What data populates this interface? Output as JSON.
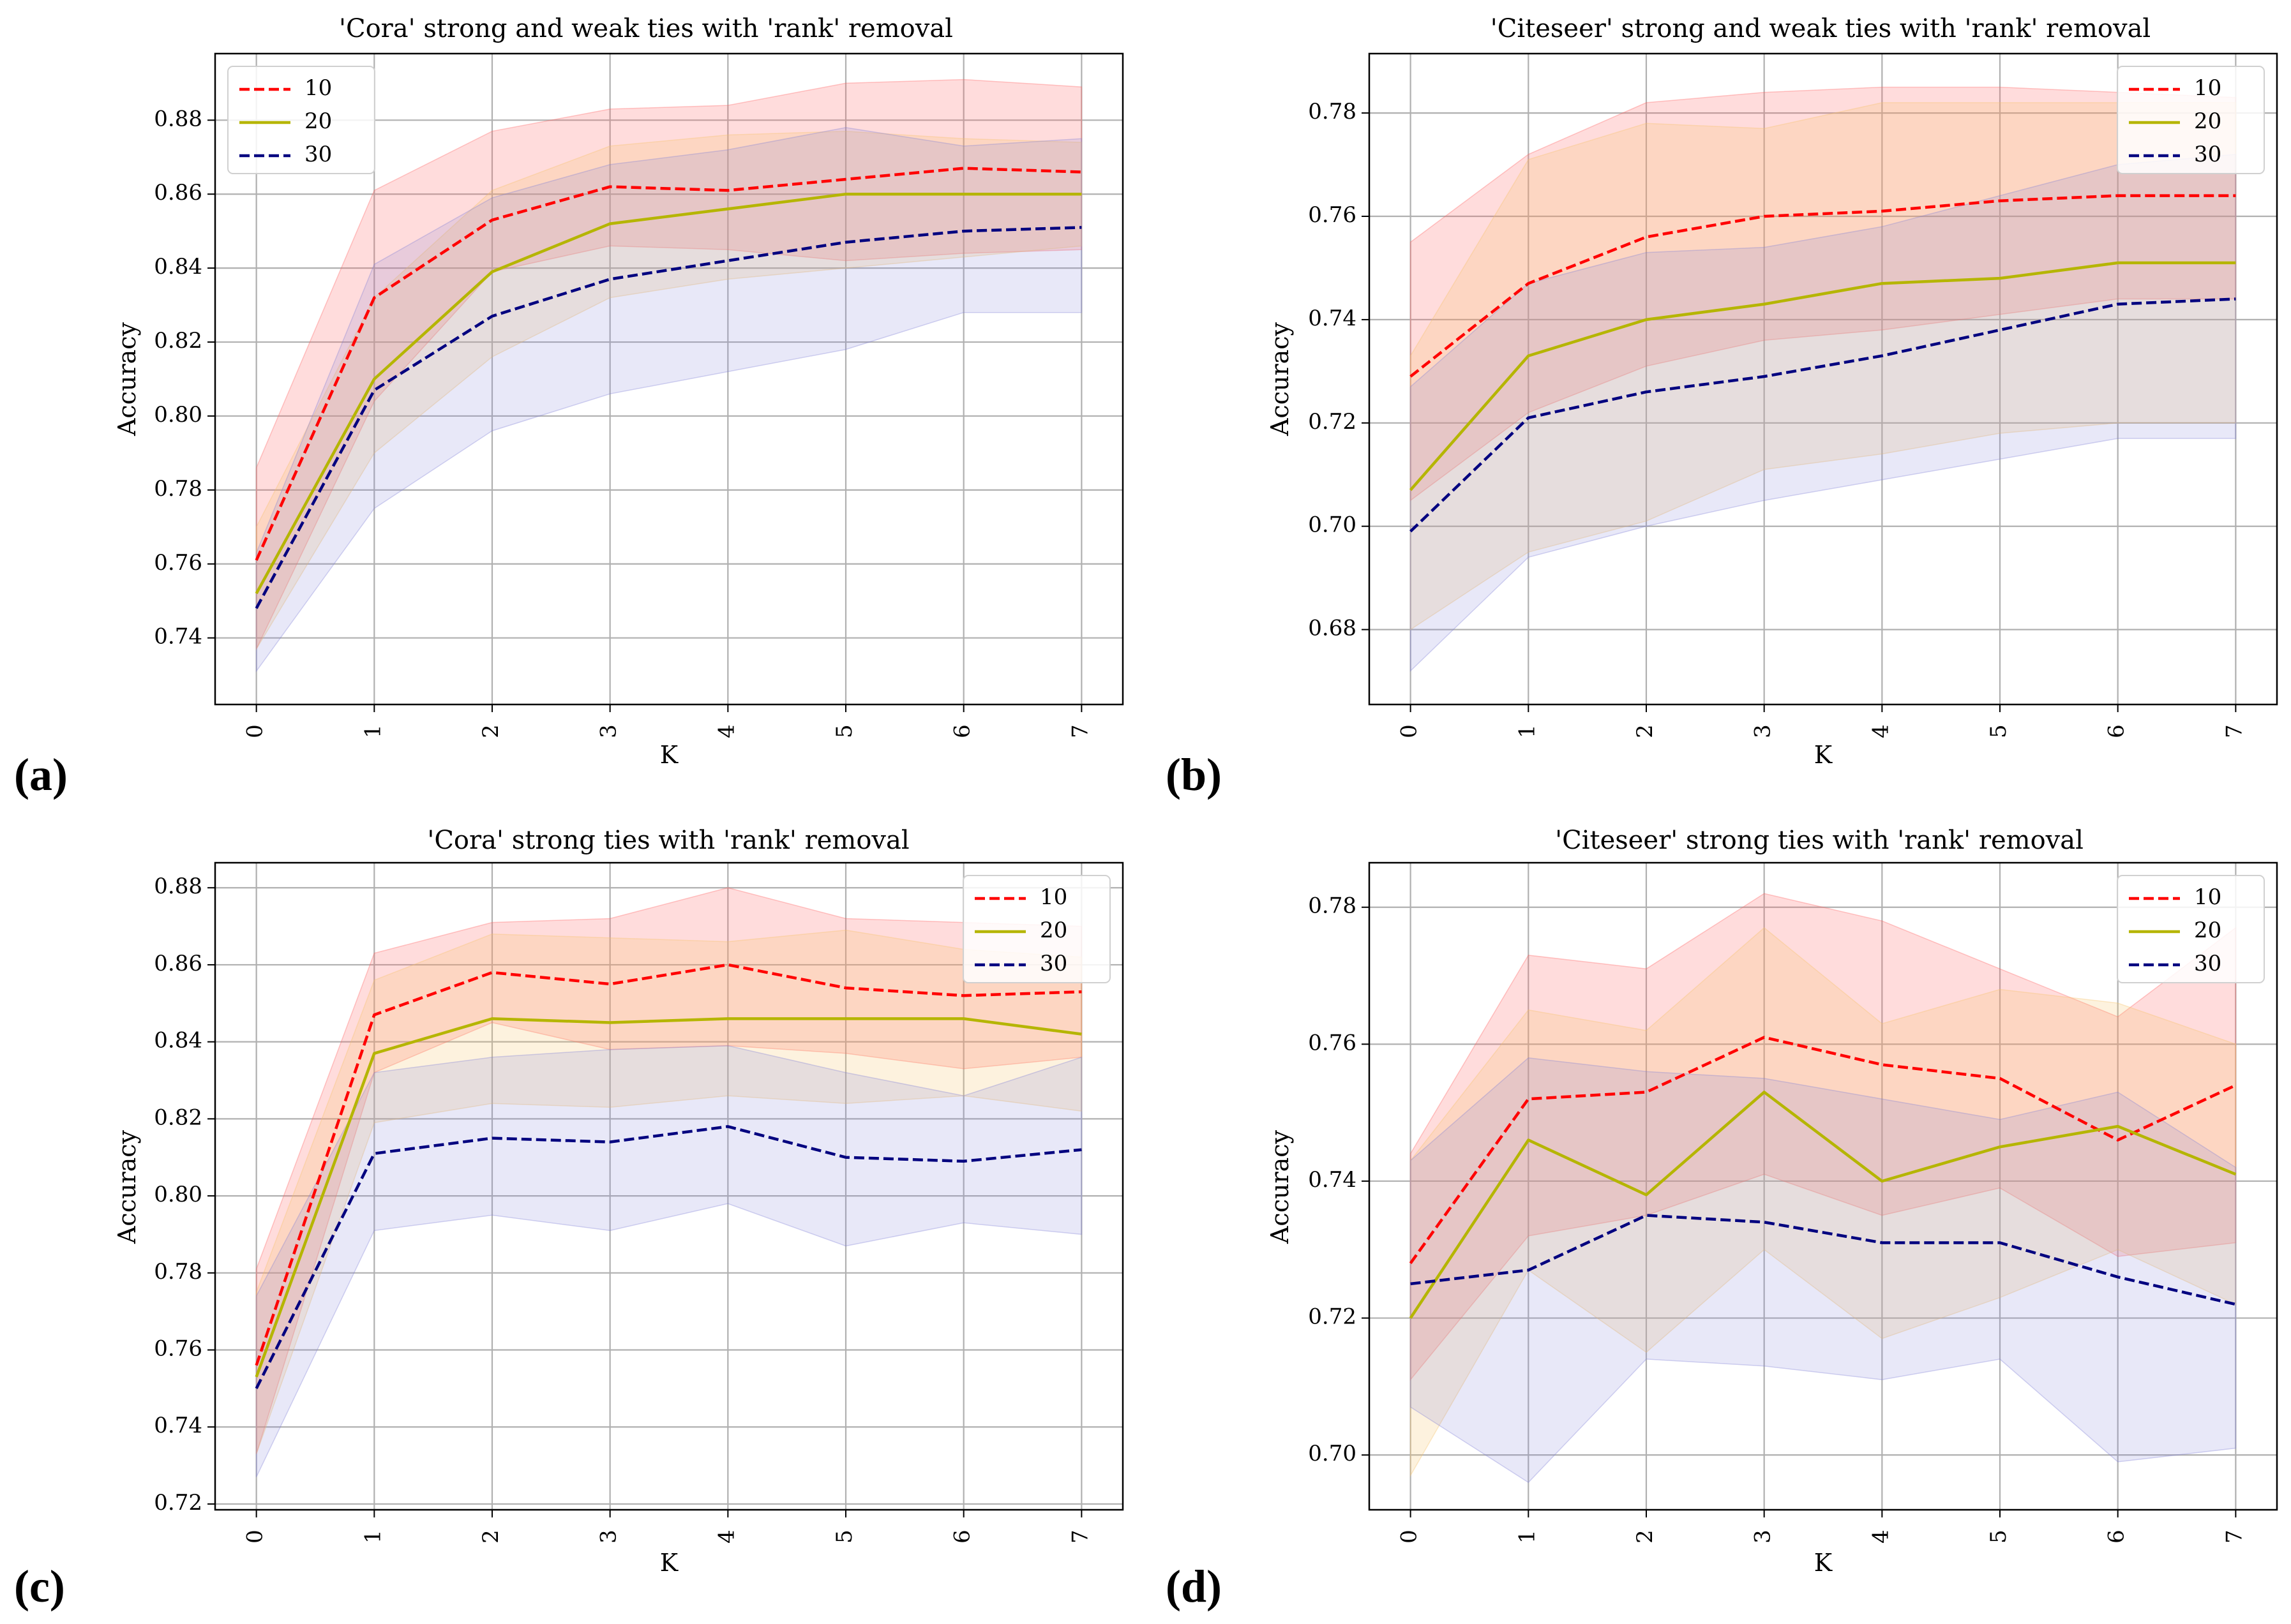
{
  "colors": {
    "s10": "#ff0000",
    "s20": "#b5b500",
    "s30": "#00007f",
    "band10": "#ff6060",
    "band20": "#f5c26b",
    "band30": "#8080d8"
  },
  "chart_data": [
    {
      "panel_label": "(a)",
      "type": "line",
      "title": "'Cora' strong and weak ties with 'rank' removal",
      "xlabel": "K",
      "ylabel": "Accuracy",
      "x": [
        0,
        1,
        2,
        3,
        4,
        5,
        6,
        7
      ],
      "xlim": [
        -0.35,
        7.35
      ],
      "ylim": [
        0.722,
        0.898
      ],
      "yticks": [
        0.74,
        0.76,
        0.78,
        0.8,
        0.82,
        0.84,
        0.86,
        0.88
      ],
      "ytick_labels": [
        "0.74",
        "0.76",
        "0.78",
        "0.80",
        "0.82",
        "0.84",
        "0.86",
        "0.88"
      ],
      "legend_position": "top-left",
      "series": [
        {
          "name": "10",
          "style": "dashed",
          "values": [
            0.761,
            0.832,
            0.853,
            0.862,
            0.861,
            0.864,
            0.867,
            0.866
          ],
          "lower": [
            0.737,
            0.804,
            0.839,
            0.846,
            0.845,
            0.842,
            0.844,
            0.845
          ],
          "upper": [
            0.786,
            0.861,
            0.877,
            0.883,
            0.884,
            0.89,
            0.891,
            0.889
          ]
        },
        {
          "name": "20",
          "style": "solid",
          "values": [
            0.752,
            0.81,
            0.839,
            0.852,
            0.856,
            0.86,
            0.86,
            0.86
          ],
          "lower": [
            0.737,
            0.79,
            0.816,
            0.832,
            0.837,
            0.84,
            0.843,
            0.846
          ],
          "upper": [
            0.77,
            0.832,
            0.861,
            0.873,
            0.876,
            0.877,
            0.875,
            0.874
          ]
        },
        {
          "name": "30",
          "style": "dashed",
          "values": [
            0.748,
            0.807,
            0.827,
            0.837,
            0.842,
            0.847,
            0.85,
            0.851
          ],
          "lower": [
            0.731,
            0.775,
            0.796,
            0.806,
            0.812,
            0.818,
            0.828,
            0.828
          ],
          "upper": [
            0.763,
            0.841,
            0.859,
            0.868,
            0.872,
            0.878,
            0.873,
            0.875
          ]
        }
      ]
    },
    {
      "panel_label": "(b)",
      "type": "line",
      "title": "'Citeseer' strong and weak ties with 'rank' removal",
      "xlabel": "K",
      "ylabel": "Accuracy",
      "x": [
        0,
        1,
        2,
        3,
        4,
        5,
        6,
        7
      ],
      "xlim": [
        -0.35,
        7.35
      ],
      "ylim": [
        0.6655,
        0.7915
      ],
      "yticks": [
        0.68,
        0.7,
        0.72,
        0.74,
        0.76,
        0.78
      ],
      "ytick_labels": [
        "0.68",
        "0.70",
        "0.72",
        "0.74",
        "0.76",
        "0.78"
      ],
      "legend_position": "top-right",
      "series": [
        {
          "name": "10",
          "style": "dashed",
          "values": [
            0.729,
            0.747,
            0.756,
            0.76,
            0.761,
            0.763,
            0.764,
            0.764
          ],
          "lower": [
            0.705,
            0.722,
            0.731,
            0.736,
            0.738,
            0.741,
            0.744,
            0.744
          ],
          "upper": [
            0.755,
            0.772,
            0.782,
            0.784,
            0.785,
            0.785,
            0.784,
            0.783
          ]
        },
        {
          "name": "20",
          "style": "solid",
          "values": [
            0.707,
            0.733,
            0.74,
            0.743,
            0.747,
            0.748,
            0.751,
            0.751
          ],
          "lower": [
            0.68,
            0.695,
            0.701,
            0.711,
            0.714,
            0.718,
            0.72,
            0.72
          ],
          "upper": [
            0.733,
            0.771,
            0.778,
            0.777,
            0.782,
            0.782,
            0.782,
            0.782
          ]
        },
        {
          "name": "30",
          "style": "dashed",
          "values": [
            0.699,
            0.721,
            0.726,
            0.729,
            0.733,
            0.738,
            0.743,
            0.744
          ],
          "lower": [
            0.672,
            0.694,
            0.7,
            0.705,
            0.709,
            0.713,
            0.717,
            0.717
          ],
          "upper": [
            0.727,
            0.747,
            0.753,
            0.754,
            0.758,
            0.764,
            0.77,
            0.772
          ]
        }
      ]
    },
    {
      "panel_label": "(c)",
      "type": "line",
      "title": "'Cora' strong ties with 'rank' removal",
      "xlabel": "K",
      "ylabel": "Accuracy",
      "x": [
        0,
        1,
        2,
        3,
        4,
        5,
        6,
        7
      ],
      "xlim": [
        -0.35,
        7.35
      ],
      "ylim": [
        0.7185,
        0.8865
      ],
      "yticks": [
        0.72,
        0.74,
        0.76,
        0.78,
        0.8,
        0.82,
        0.84,
        0.86,
        0.88
      ],
      "ytick_labels": [
        "0.72",
        "0.74",
        "0.76",
        "0.78",
        "0.80",
        "0.82",
        "0.84",
        "0.86",
        "0.88"
      ],
      "legend_position": "top-right",
      "series": [
        {
          "name": "10",
          "style": "dashed",
          "values": [
            0.756,
            0.847,
            0.858,
            0.855,
            0.86,
            0.854,
            0.852,
            0.853
          ],
          "lower": [
            0.733,
            0.832,
            0.845,
            0.838,
            0.839,
            0.837,
            0.833,
            0.836
          ],
          "upper": [
            0.781,
            0.863,
            0.871,
            0.872,
            0.88,
            0.872,
            0.871,
            0.87
          ]
        },
        {
          "name": "20",
          "style": "solid",
          "values": [
            0.753,
            0.837,
            0.846,
            0.845,
            0.846,
            0.846,
            0.846,
            0.842
          ],
          "lower": [
            0.733,
            0.819,
            0.824,
            0.823,
            0.826,
            0.824,
            0.826,
            0.822
          ],
          "upper": [
            0.775,
            0.856,
            0.868,
            0.867,
            0.866,
            0.869,
            0.864,
            0.862
          ]
        },
        {
          "name": "30",
          "style": "dashed",
          "values": [
            0.75,
            0.811,
            0.815,
            0.814,
            0.818,
            0.81,
            0.809,
            0.812
          ],
          "lower": [
            0.727,
            0.791,
            0.795,
            0.791,
            0.798,
            0.787,
            0.793,
            0.79
          ],
          "upper": [
            0.774,
            0.832,
            0.836,
            0.838,
            0.839,
            0.832,
            0.826,
            0.836
          ]
        }
      ]
    },
    {
      "panel_label": "(d)",
      "type": "line",
      "title": "'Citeseer' strong ties with 'rank' removal",
      "xlabel": "K",
      "ylabel": "Accuracy",
      "x": [
        0,
        1,
        2,
        3,
        4,
        5,
        6,
        7
      ],
      "xlim": [
        -0.35,
        7.35
      ],
      "ylim": [
        0.692,
        0.7865
      ],
      "yticks": [
        0.7,
        0.72,
        0.74,
        0.76,
        0.78
      ],
      "ytick_labels": [
        "0.70",
        "0.72",
        "0.74",
        "0.76",
        "0.78"
      ],
      "legend_position": "top-right",
      "series": [
        {
          "name": "10",
          "style": "dashed",
          "values": [
            0.728,
            0.752,
            0.753,
            0.761,
            0.757,
            0.755,
            0.746,
            0.754
          ],
          "lower": [
            0.711,
            0.732,
            0.735,
            0.741,
            0.735,
            0.739,
            0.729,
            0.731
          ],
          "upper": [
            0.744,
            0.773,
            0.771,
            0.782,
            0.778,
            0.771,
            0.764,
            0.777
          ]
        },
        {
          "name": "20",
          "style": "solid",
          "values": [
            0.72,
            0.746,
            0.738,
            0.753,
            0.74,
            0.745,
            0.748,
            0.741
          ],
          "lower": [
            0.697,
            0.727,
            0.715,
            0.73,
            0.717,
            0.723,
            0.73,
            0.722
          ],
          "upper": [
            0.743,
            0.765,
            0.762,
            0.777,
            0.763,
            0.768,
            0.766,
            0.76
          ]
        },
        {
          "name": "30",
          "style": "dashed",
          "values": [
            0.725,
            0.727,
            0.735,
            0.734,
            0.731,
            0.731,
            0.726,
            0.722
          ],
          "lower": [
            0.707,
            0.696,
            0.714,
            0.713,
            0.711,
            0.714,
            0.699,
            0.701
          ],
          "upper": [
            0.743,
            0.758,
            0.756,
            0.755,
            0.752,
            0.749,
            0.753,
            0.742
          ]
        }
      ]
    }
  ]
}
